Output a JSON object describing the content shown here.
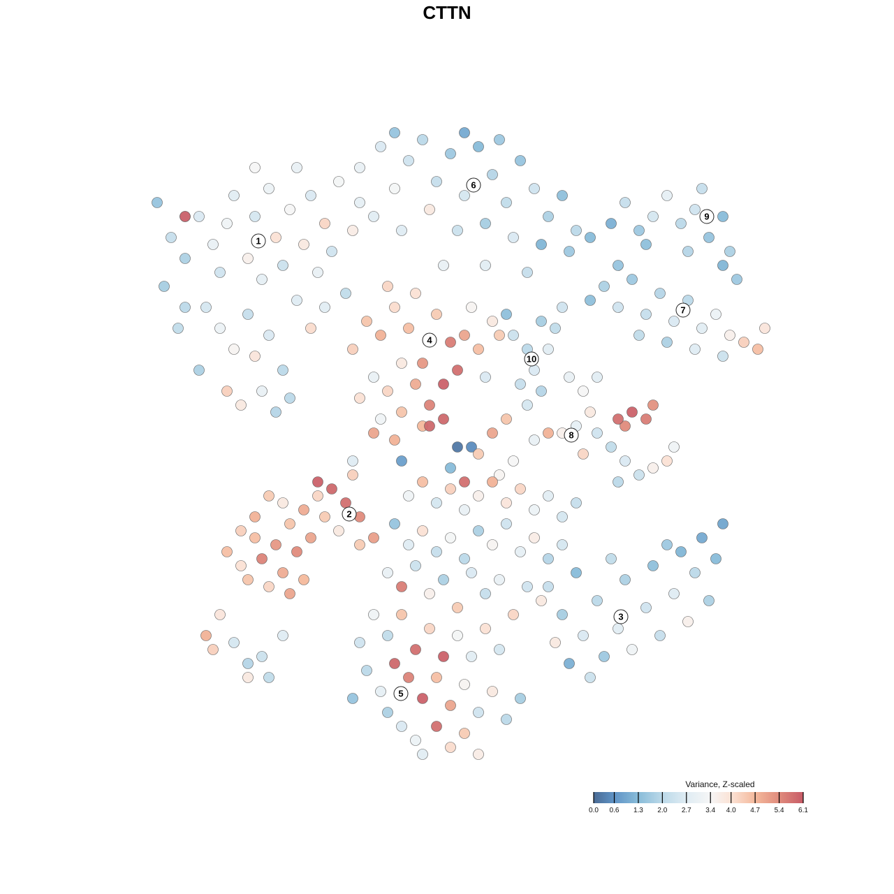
{
  "chart_data": {
    "type": "scatter",
    "title": "CTTN",
    "xlabel": "",
    "ylabel": "",
    "grid": false,
    "legend": {
      "title": "Variance, Z-scaled",
      "placement": "bottom-right",
      "ticks": [
        "0.0",
        "0.6",
        "1.3",
        "2.0",
        "2.7",
        "3.4",
        "4.0",
        "4.7",
        "5.4",
        "6.1"
      ],
      "range": [
        0.0,
        6.1
      ]
    },
    "color_scale": [
      {
        "v": 0.0,
        "color": "#4a6b94"
      },
      {
        "v": 0.6,
        "color": "#5f93c6"
      },
      {
        "v": 1.3,
        "color": "#88bcd9"
      },
      {
        "v": 2.0,
        "color": "#bcd9e9"
      },
      {
        "v": 2.7,
        "color": "#dfecf3"
      },
      {
        "v": 3.4,
        "color": "#f6f6f6"
      },
      {
        "v": 4.0,
        "color": "#fbe2d5"
      },
      {
        "v": 4.7,
        "color": "#f4b99c"
      },
      {
        "v": 5.4,
        "color": "#e08b7c"
      },
      {
        "v": 6.1,
        "color": "#c75b67"
      }
    ],
    "cluster_labels": [
      {
        "label": "1",
        "x": -29.5,
        "y": 29.5
      },
      {
        "label": "6",
        "x": 1.3,
        "y": 37.5
      },
      {
        "label": "9",
        "x": 34.7,
        "y": 33
      },
      {
        "label": "7",
        "x": 31.3,
        "y": 19.6
      },
      {
        "label": "4",
        "x": -5,
        "y": 15.3
      },
      {
        "label": "10",
        "x": 9.6,
        "y": 12.6
      },
      {
        "label": "8",
        "x": 15.3,
        "y": 1.7
      },
      {
        "label": "2",
        "x": -16.5,
        "y": -9.6
      },
      {
        "label": "3",
        "x": 22.4,
        "y": -24.3
      },
      {
        "label": "5",
        "x": -9.1,
        "y": -35.3
      }
    ],
    "points": [
      [
        -42,
        30,
        2.2
      ],
      [
        -40,
        27,
        1.8
      ],
      [
        -38,
        33,
        2.6
      ],
      [
        -36,
        29,
        3.0
      ],
      [
        -35,
        25,
        2.4
      ],
      [
        -34,
        32,
        3.2
      ],
      [
        -33,
        36,
        2.8
      ],
      [
        -31,
        27,
        3.6
      ],
      [
        -30,
        33,
        2.5
      ],
      [
        -29,
        24,
        2.9
      ],
      [
        -28,
        37,
        3.1
      ],
      [
        -27,
        30,
        4.0
      ],
      [
        -26,
        26,
        2.3
      ],
      [
        -25,
        34,
        3.4
      ],
      [
        -24,
        21,
        2.7
      ],
      [
        -23,
        29,
        3.8
      ],
      [
        -22,
        36,
        2.6
      ],
      [
        -21,
        25,
        3.0
      ],
      [
        -20,
        32,
        4.2
      ],
      [
        -19,
        28,
        2.4
      ],
      [
        -18,
        38,
        3.3
      ],
      [
        -17,
        22,
        2.1
      ],
      [
        -16,
        31,
        3.7
      ],
      [
        -15,
        35,
        2.9
      ],
      [
        -37,
        20,
        2.5
      ],
      [
        -35,
        17,
        3.1
      ],
      [
        -33,
        14,
        3.5
      ],
      [
        -31,
        19,
        2.2
      ],
      [
        -30,
        13,
        3.9
      ],
      [
        -28,
        16,
        2.6
      ],
      [
        -26,
        11,
        2.0
      ],
      [
        -34,
        8,
        4.3
      ],
      [
        -32,
        6,
        3.8
      ],
      [
        -29,
        8,
        3.0
      ],
      [
        -27,
        5,
        1.9
      ],
      [
        -40,
        20,
        2.0
      ],
      [
        -43,
        23,
        1.7
      ],
      [
        -44,
        35,
        1.5
      ],
      [
        -40,
        33,
        2.3
      ],
      [
        -40,
        33,
        6.0
      ],
      [
        -24,
        40,
        3.0
      ],
      [
        -30,
        40,
        3.4
      ],
      [
        -22,
        17,
        4.1
      ],
      [
        -25,
        7,
        2.0
      ],
      [
        -20,
        20,
        2.8
      ],
      [
        -38,
        11,
        1.8
      ],
      [
        -41,
        17,
        2.1
      ],
      [
        -15,
        40,
        3.0
      ],
      [
        -12,
        43,
        2.6
      ],
      [
        -10,
        37,
        3.3
      ],
      [
        -8,
        41,
        2.4
      ],
      [
        -6,
        44,
        2.0
      ],
      [
        -4,
        38,
        2.2
      ],
      [
        -2,
        42,
        1.6
      ],
      [
        0,
        36,
        2.5
      ],
      [
        2,
        43,
        1.3
      ],
      [
        4,
        39,
        1.9
      ],
      [
        6,
        35,
        2.1
      ],
      [
        8,
        41,
        1.5
      ],
      [
        10,
        37,
        2.4
      ],
      [
        12,
        33,
        1.8
      ],
      [
        14,
        36,
        1.4
      ],
      [
        16,
        31,
        2.0
      ],
      [
        -13,
        33,
        2.8
      ],
      [
        -9,
        31,
        2.7
      ],
      [
        -5,
        34,
        3.8
      ],
      [
        -1,
        31,
        2.3
      ],
      [
        3,
        32,
        1.7
      ],
      [
        7,
        30,
        2.6
      ],
      [
        11,
        29,
        1.2
      ],
      [
        -10,
        45,
        1.5
      ],
      [
        0,
        45,
        1.0
      ],
      [
        5,
        44,
        1.6
      ],
      [
        -3,
        26,
        3.0
      ],
      [
        3,
        26,
        2.8
      ],
      [
        15,
        28,
        1.6
      ],
      [
        18,
        30,
        1.3
      ],
      [
        9,
        25,
        2.2
      ],
      [
        21,
        32,
        1.1
      ],
      [
        23,
        35,
        2.2
      ],
      [
        25,
        31,
        1.6
      ],
      [
        27,
        33,
        2.5
      ],
      [
        29,
        36,
        2.9
      ],
      [
        31,
        32,
        2.0
      ],
      [
        33,
        34,
        2.4
      ],
      [
        35,
        30,
        1.5
      ],
      [
        37,
        33,
        1.3
      ],
      [
        38,
        28,
        1.8
      ],
      [
        34,
        37,
        2.2
      ],
      [
        32,
        28,
        1.9
      ],
      [
        39,
        24,
        1.6
      ],
      [
        37,
        26,
        1.2
      ],
      [
        26,
        29,
        1.4
      ],
      [
        20,
        23,
        1.8
      ],
      [
        22,
        20,
        2.4
      ],
      [
        24,
        24,
        1.6
      ],
      [
        26,
        19,
        2.2
      ],
      [
        28,
        22,
        1.9
      ],
      [
        30,
        18,
        2.6
      ],
      [
        32,
        21,
        2.0
      ],
      [
        34,
        17,
        2.8
      ],
      [
        36,
        19,
        3.1
      ],
      [
        38,
        16,
        3.6
      ],
      [
        40,
        15,
        4.3
      ],
      [
        42,
        14,
        4.6
      ],
      [
        43,
        17,
        3.9
      ],
      [
        37,
        13,
        2.3
      ],
      [
        33,
        14,
        2.7
      ],
      [
        29,
        15,
        1.8
      ],
      [
        25,
        16,
        2.1
      ],
      [
        22,
        26,
        1.5
      ],
      [
        18,
        21,
        1.4
      ],
      [
        -16,
        14,
        4.3
      ],
      [
        -14,
        18,
        4.5
      ],
      [
        -12,
        16,
        4.8
      ],
      [
        -10,
        20,
        4.1
      ],
      [
        -8,
        17,
        4.6
      ],
      [
        -6,
        12,
        5.2
      ],
      [
        -4,
        19,
        4.4
      ],
      [
        -2,
        15,
        5.6
      ],
      [
        -1,
        11,
        5.8
      ],
      [
        -3,
        9,
        6.0
      ],
      [
        -5,
        6,
        5.5
      ],
      [
        -7,
        9,
        4.9
      ],
      [
        -9,
        12,
        3.8
      ],
      [
        -11,
        8,
        4.2
      ],
      [
        -13,
        10,
        3.0
      ],
      [
        -15,
        7,
        4.0
      ],
      [
        -12,
        4,
        3.2
      ],
      [
        -9,
        5,
        4.5
      ],
      [
        -6,
        3,
        4.7
      ],
      [
        -3,
        4,
        5.9
      ],
      [
        0,
        16,
        5.0
      ],
      [
        2,
        14,
        4.6
      ],
      [
        4,
        18,
        3.8
      ],
      [
        1,
        20,
        3.5
      ],
      [
        -7,
        22,
        4.0
      ],
      [
        -11,
        23,
        4.2
      ],
      [
        3,
        10,
        2.6
      ],
      [
        5,
        16,
        4.4
      ],
      [
        -13,
        2,
        5.0
      ],
      [
        -10,
        1,
        4.8
      ],
      [
        7,
        16,
        2.3
      ],
      [
        9,
        14,
        2.0
      ],
      [
        10,
        11,
        2.6
      ],
      [
        8,
        9,
        2.2
      ],
      [
        11,
        8,
        1.9
      ],
      [
        9,
        6,
        2.5
      ],
      [
        12,
        14,
        2.8
      ],
      [
        11,
        18,
        1.7
      ],
      [
        13,
        17,
        2.1
      ],
      [
        6,
        19,
        1.4
      ],
      [
        14,
        20,
        2.4
      ],
      [
        15,
        10,
        3.0
      ],
      [
        17,
        8,
        3.4
      ],
      [
        18,
        5,
        3.8
      ],
      [
        16,
        3,
        2.9
      ],
      [
        19,
        2,
        2.4
      ],
      [
        21,
        0,
        2.1
      ],
      [
        23,
        -2,
        2.6
      ],
      [
        25,
        -4,
        2.3
      ],
      [
        27,
        -3,
        3.6
      ],
      [
        29,
        -2,
        4.0
      ],
      [
        30,
        0,
        3.2
      ],
      [
        22,
        4,
        5.8
      ],
      [
        24,
        5,
        6.0
      ],
      [
        26,
        4,
        5.6
      ],
      [
        27,
        6,
        5.3
      ],
      [
        23,
        3,
        5.4
      ],
      [
        17,
        -1,
        4.2
      ],
      [
        14,
        2,
        3.6
      ],
      [
        19,
        10,
        2.8
      ],
      [
        22,
        -5,
        2.0
      ],
      [
        12,
        2,
        4.8
      ],
      [
        10,
        1,
        3.0
      ],
      [
        4,
        2,
        5.0
      ],
      [
        1,
        0,
        0.5
      ],
      [
        -1,
        0,
        0.2
      ],
      [
        2,
        -1,
        4.4
      ],
      [
        -9,
        -2,
        0.8
      ],
      [
        -2,
        -3,
        1.3
      ],
      [
        -16,
        -2,
        2.7
      ],
      [
        -5,
        3,
        5.9
      ],
      [
        5,
        -4,
        3.5
      ],
      [
        7,
        -2,
        3.4
      ],
      [
        6,
        4,
        4.5
      ],
      [
        -34,
        -15,
        4.6
      ],
      [
        -32,
        -12,
        4.3
      ],
      [
        -30,
        -10,
        4.8
      ],
      [
        -29,
        -16,
        5.5
      ],
      [
        -27,
        -14,
        5.2
      ],
      [
        -26,
        -18,
        4.9
      ],
      [
        -25,
        -11,
        4.5
      ],
      [
        -24,
        -15,
        5.4
      ],
      [
        -23,
        -19,
        4.7
      ],
      [
        -22,
        -13,
        5.0
      ],
      [
        -21,
        -7,
        4.2
      ],
      [
        -20,
        -10,
        4.4
      ],
      [
        -19,
        -6,
        5.9
      ],
      [
        -21,
        -5,
        6.0
      ],
      [
        -17,
        -8,
        5.8
      ],
      [
        -15,
        -10,
        5.4
      ],
      [
        -13,
        -13,
        5.1
      ],
      [
        -15,
        -14,
        4.4
      ],
      [
        -31,
        -19,
        4.5
      ],
      [
        -28,
        -20,
        4.2
      ],
      [
        -25,
        -21,
        5.0
      ],
      [
        -26,
        -8,
        3.8
      ],
      [
        -28,
        -7,
        4.4
      ],
      [
        -30,
        -13,
        4.6
      ],
      [
        -32,
        -17,
        4.0
      ],
      [
        -18,
        -12,
        3.8
      ],
      [
        -23,
        -9,
        4.9
      ],
      [
        -16,
        -4,
        4.3
      ],
      [
        -8,
        -7,
        3.2
      ],
      [
        -6,
        -5,
        4.6
      ],
      [
        -4,
        -8,
        2.5
      ],
      [
        -2,
        -6,
        4.3
      ],
      [
        0,
        -9,
        3.0
      ],
      [
        2,
        -7,
        3.6
      ],
      [
        4,
        -5,
        4.8
      ],
      [
        6,
        -8,
        3.9
      ],
      [
        8,
        -6,
        4.2
      ],
      [
        10,
        -9,
        3.1
      ],
      [
        12,
        -7,
        2.8
      ],
      [
        14,
        -10,
        2.5
      ],
      [
        16,
        -8,
        2.2
      ],
      [
        -10,
        -11,
        1.5
      ],
      [
        -8,
        -14,
        2.7
      ],
      [
        -6,
        -12,
        4.0
      ],
      [
        -4,
        -15,
        2.2
      ],
      [
        -2,
        -13,
        3.3
      ],
      [
        0,
        -16,
        2.0
      ],
      [
        2,
        -12,
        1.8
      ],
      [
        4,
        -14,
        3.5
      ],
      [
        6,
        -11,
        2.4
      ],
      [
        8,
        -15,
        2.9
      ],
      [
        10,
        -13,
        3.7
      ],
      [
        12,
        -16,
        1.9
      ],
      [
        14,
        -14,
        2.5
      ],
      [
        -11,
        -18,
        3.0
      ],
      [
        -9,
        -20,
        5.6
      ],
      [
        -7,
        -17,
        2.3
      ],
      [
        -5,
        -21,
        3.6
      ],
      [
        -3,
        -19,
        1.8
      ],
      [
        -1,
        -23,
        4.4
      ],
      [
        1,
        -18,
        2.6
      ],
      [
        3,
        -21,
        2.2
      ],
      [
        5,
        -19,
        3.0
      ],
      [
        7,
        -24,
        4.2
      ],
      [
        9,
        -20,
        2.4
      ],
      [
        11,
        -22,
        3.8
      ],
      [
        -13,
        -24,
        3.2
      ],
      [
        -11,
        -27,
        2.1
      ],
      [
        -9,
        -24,
        4.5
      ],
      [
        -7,
        -29,
        5.8
      ],
      [
        -5,
        -26,
        4.2
      ],
      [
        -3,
        -30,
        6.0
      ],
      [
        -1,
        -27,
        3.3
      ],
      [
        1,
        -30,
        2.8
      ],
      [
        3,
        -26,
        4.0
      ],
      [
        5,
        -29,
        2.5
      ],
      [
        -14,
        -32,
        2.0
      ],
      [
        -12,
        -35,
        2.9
      ],
      [
        -10,
        -31,
        5.9
      ],
      [
        -8,
        -33,
        5.5
      ],
      [
        -6,
        -36,
        6.0
      ],
      [
        -4,
        -33,
        4.6
      ],
      [
        -2,
        -37,
        5.0
      ],
      [
        0,
        -34,
        3.5
      ],
      [
        2,
        -38,
        2.4
      ],
      [
        4,
        -35,
        3.8
      ],
      [
        6,
        -39,
        2.0
      ],
      [
        -9,
        -40,
        2.6
      ],
      [
        -7,
        -42,
        3.1
      ],
      [
        -4,
        -40,
        5.8
      ],
      [
        -2,
        -43,
        4.1
      ],
      [
        0,
        -41,
        4.4
      ],
      [
        2,
        -44,
        3.7
      ],
      [
        -6,
        -44,
        2.8
      ],
      [
        -11,
        -38,
        1.8
      ],
      [
        8,
        -36,
        1.7
      ],
      [
        -16,
        -36,
        1.5
      ],
      [
        -15,
        -28,
        2.4
      ],
      [
        0,
        -5,
        5.8
      ],
      [
        12,
        -20,
        2.2
      ],
      [
        14,
        -24,
        1.7
      ],
      [
        16,
        -18,
        1.3
      ],
      [
        17,
        -27,
        2.6
      ],
      [
        19,
        -22,
        2.0
      ],
      [
        20,
        -30,
        1.6
      ],
      [
        22,
        -26,
        2.8
      ],
      [
        23,
        -19,
        1.8
      ],
      [
        24,
        -29,
        3.2
      ],
      [
        26,
        -23,
        2.4
      ],
      [
        27,
        -17,
        1.4
      ],
      [
        28,
        -27,
        2.2
      ],
      [
        30,
        -21,
        2.7
      ],
      [
        31,
        -15,
        1.2
      ],
      [
        32,
        -25,
        3.6
      ],
      [
        33,
        -18,
        2.0
      ],
      [
        34,
        -13,
        1.0
      ],
      [
        35,
        -22,
        1.8
      ],
      [
        36,
        -16,
        1.3
      ],
      [
        37,
        -11,
        0.9
      ],
      [
        15,
        -31,
        1.1
      ],
      [
        18,
        -33,
        2.3
      ],
      [
        13,
        -28,
        3.8
      ],
      [
        29,
        -14,
        1.6
      ],
      [
        21,
        -16,
        2.1
      ],
      [
        -37,
        -27,
        4.8
      ],
      [
        -36,
        -29,
        4.3
      ],
      [
        -33,
        -28,
        2.5
      ],
      [
        -31,
        -31,
        1.9
      ],
      [
        -29,
        -30,
        2.3
      ],
      [
        -31,
        -33,
        3.8
      ],
      [
        -28,
        -33,
        2.1
      ],
      [
        -26,
        -27,
        2.7
      ],
      [
        -35,
        -24,
        3.9
      ]
    ]
  }
}
